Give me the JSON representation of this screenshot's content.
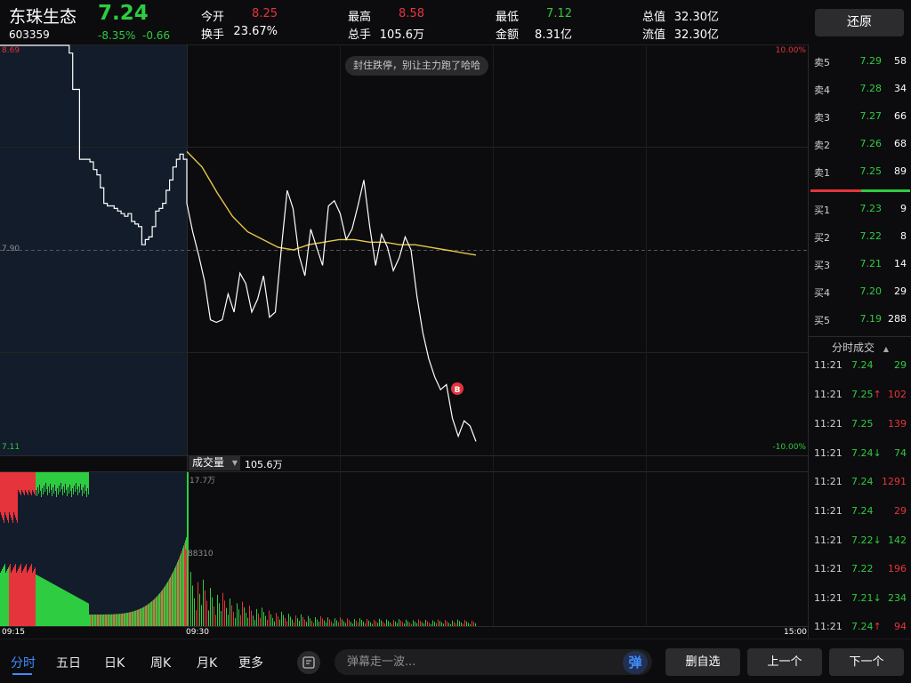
{
  "header": {
    "name": "东珠生态",
    "price": "7.24",
    "code": "603359",
    "change_pct": "-8.35%",
    "change_amt": "-0.66",
    "stats": [
      {
        "label": "今开",
        "value": "8.25",
        "color": "red"
      },
      {
        "label": "最高",
        "value": "8.58",
        "color": "red"
      },
      {
        "label": "最低",
        "value": "7.12",
        "color": "green"
      },
      {
        "label": "总值",
        "value": "32.30亿",
        "color": "white"
      },
      {
        "label": "换手",
        "value": "23.67%",
        "color": "white"
      },
      {
        "label": "总手",
        "value": "105.6万",
        "color": "white"
      },
      {
        "label": "金额",
        "value": "8.31亿",
        "color": "white"
      },
      {
        "label": "流值",
        "value": "32.30亿",
        "color": "white"
      }
    ],
    "restore_label": "还原"
  },
  "chart": {
    "price_high_label": "8.69",
    "price_mid_label": "7.90",
    "price_low_label": "7.11",
    "pct_high_label": "10.00%",
    "pct_low_label": "-10.00%",
    "tip": "封住跌停，别让主力跑了哈哈",
    "volume_selector": "成交量",
    "volume_total": "105.6万",
    "vol_max_label": "17.7万",
    "vol_mid_label": "88310",
    "time_start": "09:15",
    "time_open": "09:30",
    "time_end": "15:00",
    "buy_marker": "B",
    "colors": {
      "up": "#e5343b",
      "down": "#2ecc40",
      "price_line": "#ffffff",
      "avg_line": "#e6c84a",
      "auction_bg": "#121c2b"
    }
  },
  "chart_data": {
    "type": "line",
    "title": "",
    "ylim": [
      7.11,
      8.69
    ],
    "prev_close": 7.9,
    "x_range": [
      "09:15",
      "15:00"
    ],
    "series": [
      {
        "values": [
          8.69,
          8.69,
          8.69,
          8.69,
          8.69,
          8.69,
          8.69,
          8.69,
          8.69,
          8.69,
          8.69,
          8.69,
          8.69,
          8.69,
          8.69,
          8.69,
          8.69,
          8.69,
          8.69,
          8.69,
          8.66,
          8.52,
          8.52,
          8.25,
          8.25,
          8.25,
          8.24,
          8.21,
          8.19,
          8.14,
          8.08,
          8.07,
          8.07,
          8.06,
          8.05,
          8.04,
          8.03,
          8.04,
          8.01,
          8.0,
          7.99,
          7.92,
          7.94,
          7.95,
          7.99,
          8.05,
          8.06,
          8.08,
          8.13,
          8.17,
          8.22,
          8.25,
          8.27,
          8.25,
          8.19,
          8.08,
          7.97,
          7.88,
          7.78,
          7.63,
          7.62,
          7.63,
          7.73,
          7.66,
          7.81,
          7.77,
          7.66,
          7.71,
          7.8,
          7.64,
          7.66,
          7.9,
          8.13,
          8.06,
          7.88,
          7.8,
          7.98,
          7.91,
          7.84,
          8.07,
          8.09,
          8.04,
          7.94,
          7.98,
          8.07,
          8.17,
          7.99,
          7.84,
          7.96,
          7.91,
          7.82,
          7.87,
          7.95,
          7.9,
          7.72,
          7.58,
          7.48,
          7.41,
          7.36,
          7.38,
          7.25,
          7.18,
          7.24,
          7.22,
          7.16
        ]
      },
      {
        "values": [
          8.28,
          8.22,
          8.12,
          8.03,
          7.97,
          7.94,
          7.91,
          7.9,
          7.92,
          7.93,
          7.94,
          7.94,
          7.93,
          7.93,
          7.92,
          7.92,
          7.91,
          7.9,
          7.89,
          7.88
        ]
      }
    ],
    "volume": [
      {
        "bucket": "auction",
        "values": [
          17.7,
          8.83
        ]
      },
      {
        "bucket": "continuous",
        "values_approx": [
          8.8,
          3.9,
          2.4,
          1.5,
          1.5,
          0.8,
          0.5,
          0.3,
          0.2,
          0.2
        ]
      }
    ]
  },
  "orderbook": {
    "asks": [
      {
        "label": "卖5",
        "price": "7.29",
        "vol": "58"
      },
      {
        "label": "卖4",
        "price": "7.28",
        "vol": "34"
      },
      {
        "label": "卖3",
        "price": "7.27",
        "vol": "66"
      },
      {
        "label": "卖2",
        "price": "7.26",
        "vol": "68"
      },
      {
        "label": "卖1",
        "price": "7.25",
        "vol": "89"
      }
    ],
    "bids": [
      {
        "label": "买1",
        "price": "7.23",
        "vol": "9"
      },
      {
        "label": "买2",
        "price": "7.22",
        "vol": "8"
      },
      {
        "label": "买3",
        "price": "7.21",
        "vol": "14"
      },
      {
        "label": "买4",
        "price": "7.20",
        "vol": "29"
      },
      {
        "label": "买5",
        "price": "7.19",
        "vol": "288"
      }
    ],
    "trades_title": "分时成交",
    "trades": [
      {
        "time": "11:21",
        "price": "7.24",
        "arrow": "",
        "vol": "29",
        "vol_color": "green"
      },
      {
        "time": "11:21",
        "price": "7.25",
        "arrow": "↑",
        "vol": "102",
        "vol_color": "red"
      },
      {
        "time": "11:21",
        "price": "7.25",
        "arrow": "",
        "vol": "139",
        "vol_color": "red"
      },
      {
        "time": "11:21",
        "price": "7.24",
        "arrow": "↓",
        "vol": "74",
        "vol_color": "green"
      },
      {
        "time": "11:21",
        "price": "7.24",
        "arrow": "",
        "vol": "1291",
        "vol_color": "red"
      },
      {
        "time": "11:21",
        "price": "7.24",
        "arrow": "",
        "vol": "29",
        "vol_color": "red"
      },
      {
        "time": "11:21",
        "price": "7.22",
        "arrow": "↓",
        "vol": "142",
        "vol_color": "green"
      },
      {
        "time": "11:21",
        "price": "7.22",
        "arrow": "",
        "vol": "196",
        "vol_color": "red"
      },
      {
        "time": "11:21",
        "price": "7.21",
        "arrow": "↓",
        "vol": "234",
        "vol_color": "green"
      },
      {
        "time": "11:21",
        "price": "7.24",
        "arrow": "↑",
        "vol": "94",
        "vol_color": "red"
      }
    ]
  },
  "bottom": {
    "tabs": [
      "分时",
      "五日",
      "日K",
      "周K",
      "月K",
      "更多"
    ],
    "danmu_placeholder": "弹幕走一波...",
    "danmu_send": "弹",
    "watchlist_remove": "删自选",
    "prev": "上一个",
    "next": "下一个"
  }
}
